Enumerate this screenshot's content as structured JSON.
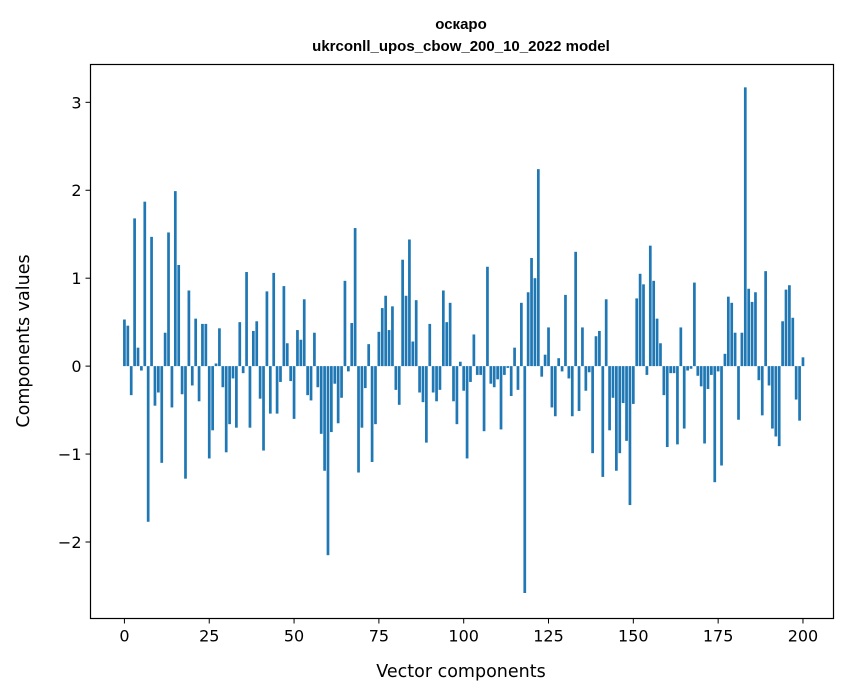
{
  "chart_data": {
    "type": "bar",
    "title": "оскаро",
    "subtitle": "ukrconll_upos_cbow_200_10_2022 model",
    "xlabel": "Vector components",
    "ylabel": "Components values",
    "xlim": [
      -10,
      209
    ],
    "ylim": [
      -2.87,
      3.43
    ],
    "xticks": [
      0,
      25,
      50,
      75,
      100,
      125,
      150,
      175,
      200
    ],
    "yticks": [
      -2,
      -1,
      0,
      1,
      2,
      3
    ],
    "ytick_labels": [
      "−2",
      "−1",
      "0",
      "1",
      "2",
      "3"
    ],
    "bar_color": "#1f77b4",
    "grid": false,
    "values": [
      0.53,
      0.46,
      -0.33,
      1.68,
      0.21,
      -0.05,
      1.87,
      -1.77,
      1.47,
      -0.45,
      -0.3,
      -1.1,
      0.38,
      1.52,
      -0.47,
      1.99,
      1.15,
      -0.32,
      -1.28,
      0.86,
      -0.22,
      0.54,
      -0.4,
      0.48,
      0.48,
      -1.05,
      -0.73,
      0.03,
      0.43,
      -0.24,
      -0.98,
      -0.66,
      -0.14,
      -0.7,
      0.5,
      -0.08,
      1.07,
      -0.7,
      0.4,
      0.51,
      -0.37,
      -0.96,
      0.85,
      -0.54,
      1.06,
      -0.54,
      -0.18,
      0.91,
      0.26,
      -0.17,
      -0.6,
      0.41,
      0.3,
      0.76,
      -0.33,
      -0.39,
      0.38,
      -0.24,
      -0.77,
      -1.19,
      -2.15,
      -0.75,
      -0.2,
      -0.65,
      -0.36,
      0.97,
      -0.06,
      0.49,
      1.57,
      -1.21,
      -0.7,
      -0.25,
      0.25,
      -1.09,
      -0.66,
      0.39,
      0.66,
      0.8,
      0.41,
      0.68,
      -0.27,
      -0.44,
      1.21,
      0.8,
      1.44,
      0.28,
      0.75,
      -0.3,
      -0.41,
      -0.87,
      0.48,
      -0.3,
      -0.4,
      -0.27,
      0.86,
      0.5,
      0.72,
      -0.4,
      -0.66,
      0.05,
      -0.28,
      -1.05,
      -0.18,
      0.36,
      -0.1,
      -0.1,
      -0.74,
      1.13,
      -0.2,
      -0.24,
      -0.15,
      -0.72,
      -0.1,
      -0.02,
      -0.34,
      0.21,
      -0.27,
      0.72,
      -2.58,
      0.84,
      1.23,
      1.0,
      2.24,
      -0.12,
      0.13,
      0.44,
      -0.47,
      -0.57,
      0.09,
      -0.06,
      0.81,
      -0.14,
      -0.57,
      1.3,
      -0.51,
      0.44,
      -0.28,
      -0.07,
      -0.99,
      0.34,
      0.4,
      -1.26,
      0.76,
      -0.73,
      -0.36,
      -1.19,
      -0.99,
      -0.42,
      -0.85,
      -1.58,
      -0.43,
      0.77,
      1.05,
      0.93,
      -0.1,
      1.37,
      0.97,
      0.54,
      0.26,
      -0.33,
      -0.92,
      -0.08,
      -0.08,
      -0.89,
      0.44,
      -0.71,
      -0.05,
      -0.03,
      0.95,
      -0.11,
      -0.23,
      -0.88,
      -0.26,
      -0.1,
      -1.32,
      -0.06,
      -1.13,
      0.14,
      0.79,
      0.72,
      0.38,
      -0.61,
      0.38,
      3.17,
      0.88,
      0.73,
      0.84,
      -0.16,
      -0.56,
      1.08,
      -0.22,
      -0.71,
      -0.8,
      -0.91,
      0.51,
      0.87,
      0.92,
      0.55,
      -0.38,
      -0.62,
      0.1
    ]
  }
}
